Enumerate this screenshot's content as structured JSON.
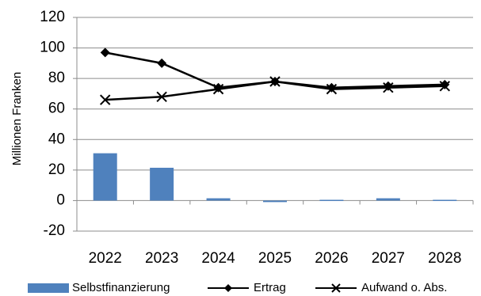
{
  "chart_data": {
    "type": "bar+line",
    "ylabel": "Millionen Franken",
    "ylim": [
      -20,
      120
    ],
    "yticks": [
      -20,
      0,
      20,
      40,
      60,
      80,
      100,
      120
    ],
    "categories": [
      "2022",
      "2023",
      "2024",
      "2025",
      "2026",
      "2027",
      "2028"
    ],
    "grid": "horizontal",
    "legend_position": "bottom",
    "series": [
      {
        "name": "Selbstfinanzierung",
        "kind": "bar",
        "color": "#4f81bd",
        "values": [
          31,
          21.5,
          1.5,
          -1,
          0.5,
          1.5,
          0.5
        ]
      },
      {
        "name": "Ertrag",
        "kind": "line",
        "marker": "diamond",
        "color": "#000000",
        "values": [
          97,
          90,
          74,
          78,
          74,
          75,
          76
        ]
      },
      {
        "name": "Aufwand o. Abs.",
        "kind": "line",
        "marker": "x",
        "color": "#000000",
        "values": [
          66,
          68,
          73,
          78,
          73,
          74,
          75
        ]
      }
    ]
  }
}
